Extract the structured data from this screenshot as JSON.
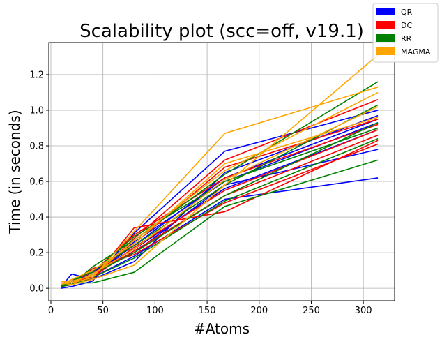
{
  "chart_data": {
    "type": "line",
    "title": "Scalability plot (scc=off, v19.1)",
    "xlabel": "#Atoms",
    "ylabel": "Time (in seconds)",
    "xlim": [
      -2,
      330
    ],
    "ylim": [
      -0.07,
      1.38
    ],
    "xticks": [
      0,
      50,
      100,
      150,
      200,
      250,
      300
    ],
    "yticks": [
      0.0,
      0.2,
      0.4,
      0.6,
      0.8,
      1.0,
      1.2
    ],
    "grid": true,
    "legend_position": "top-right",
    "x": [
      10,
      20,
      40,
      80,
      167,
      314
    ],
    "legend": [
      {
        "name": "QR",
        "color": "#0000ff"
      },
      {
        "name": "DC",
        "color": "#ff0000"
      },
      {
        "name": "RR",
        "color": "#008000"
      },
      {
        "name": "MAGMA",
        "color": "#ffa500"
      }
    ],
    "series": [
      {
        "group": "QR",
        "color": "#0000ff",
        "values": [
          0.0,
          0.01,
          0.04,
          0.31,
          0.77,
          1.0
        ]
      },
      {
        "group": "QR",
        "color": "#0000ff",
        "values": [
          0.01,
          0.08,
          0.05,
          0.15,
          0.65,
          0.97
        ]
      },
      {
        "group": "QR",
        "color": "#0000ff",
        "values": [
          0.01,
          0.02,
          0.07,
          0.26,
          0.6,
          0.93
        ]
      },
      {
        "group": "QR",
        "color": "#0000ff",
        "values": [
          0.02,
          0.03,
          0.09,
          0.22,
          0.56,
          0.89
        ]
      },
      {
        "group": "QR",
        "color": "#0000ff",
        "values": [
          0.01,
          0.02,
          0.06,
          0.18,
          0.5,
          0.62
        ]
      },
      {
        "group": "QR",
        "color": "#0000ff",
        "values": [
          0.02,
          0.04,
          0.1,
          0.2,
          0.58,
          0.78
        ]
      },
      {
        "group": "QR",
        "color": "#0000ff",
        "values": [
          0.01,
          0.03,
          0.08,
          0.24,
          0.62,
          0.95
        ]
      },
      {
        "group": "DC",
        "color": "#ff0000",
        "values": [
          0.02,
          0.03,
          0.05,
          0.34,
          0.43,
          0.83
        ]
      },
      {
        "group": "DC",
        "color": "#ff0000",
        "values": [
          0.01,
          0.05,
          0.06,
          0.28,
          0.72,
          1.06
        ]
      },
      {
        "group": "DC",
        "color": "#ff0000",
        "values": [
          0.02,
          0.02,
          0.08,
          0.25,
          0.68,
          0.95
        ]
      },
      {
        "group": "DC",
        "color": "#ff0000",
        "values": [
          0.01,
          0.03,
          0.07,
          0.21,
          0.52,
          0.86
        ]
      },
      {
        "group": "DC",
        "color": "#ff0000",
        "values": [
          0.02,
          0.04,
          0.09,
          0.3,
          0.62,
          0.92
        ]
      },
      {
        "group": "DC",
        "color": "#ff0000",
        "values": [
          0.01,
          0.02,
          0.06,
          0.23,
          0.55,
          0.89
        ]
      },
      {
        "group": "DC",
        "color": "#ff0000",
        "values": [
          0.03,
          0.03,
          0.11,
          0.19,
          0.48,
          0.81
        ]
      },
      {
        "group": "RR",
        "color": "#008000",
        "values": [
          0.02,
          0.03,
          0.03,
          0.09,
          0.46,
          0.72
        ]
      },
      {
        "group": "RR",
        "color": "#008000",
        "values": [
          0.01,
          0.02,
          0.12,
          0.27,
          0.64,
          1.16
        ]
      },
      {
        "group": "RR",
        "color": "#008000",
        "values": [
          0.02,
          0.04,
          0.1,
          0.24,
          0.58,
          1.03
        ]
      },
      {
        "group": "RR",
        "color": "#008000",
        "values": [
          0.01,
          0.03,
          0.08,
          0.2,
          0.52,
          0.93
        ]
      },
      {
        "group": "RR",
        "color": "#008000",
        "values": [
          0.02,
          0.02,
          0.06,
          0.17,
          0.49,
          0.84
        ]
      },
      {
        "group": "RR",
        "color": "#008000",
        "values": [
          0.01,
          0.05,
          0.09,
          0.29,
          0.6,
          0.9
        ]
      },
      {
        "group": "MAGMA",
        "color": "#ffa500",
        "values": [
          0.04,
          0.03,
          0.06,
          0.32,
          0.87,
          1.13
        ]
      },
      {
        "group": "MAGMA",
        "color": "#ffa500",
        "values": [
          0.03,
          0.02,
          0.05,
          0.13,
          0.58,
          1.31
        ]
      },
      {
        "group": "MAGMA",
        "color": "#ffa500",
        "values": [
          0.02,
          0.04,
          0.07,
          0.27,
          0.66,
          1.1
        ]
      },
      {
        "group": "MAGMA",
        "color": "#ffa500",
        "values": [
          0.03,
          0.03,
          0.08,
          0.22,
          0.61,
          1.02
        ]
      },
      {
        "group": "MAGMA",
        "color": "#ffa500",
        "values": [
          0.02,
          0.05,
          0.1,
          0.25,
          0.7,
          0.96
        ]
      }
    ]
  }
}
